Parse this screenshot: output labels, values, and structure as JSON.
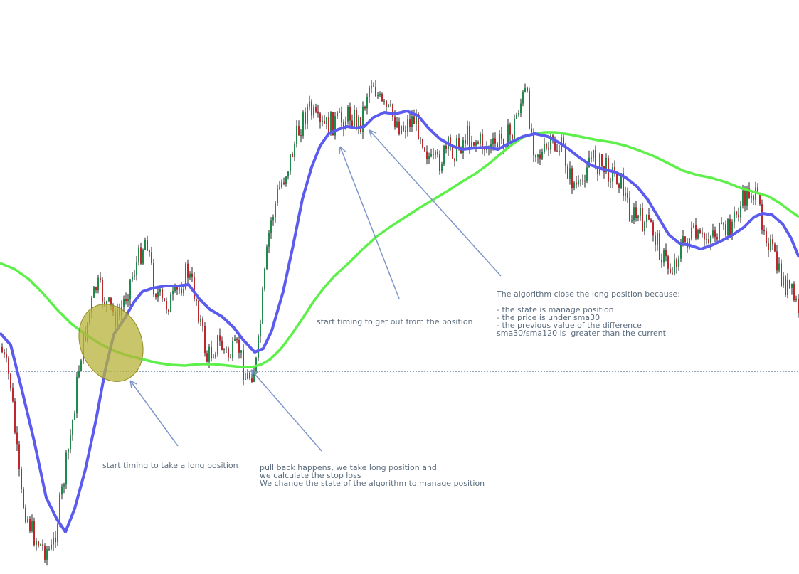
{
  "colors": {
    "background": "#ffffff",
    "up_candle": "#1f8a4c",
    "down_candle": "#c0272d",
    "wick": "#222222",
    "sma30": "#5b5bef",
    "sma120": "#5ef04a",
    "level_line": "#1f4e79",
    "arrow": "#7e96c8",
    "highlight_fill": "#b5b23a",
    "highlight_stroke": "#8f8c20",
    "annotation_text": "#5a6b7d"
  },
  "annotations": {
    "enter_timing": "start timing to take a long position",
    "pullback": "pull back happens, we take long position and\nwe calculate the stop loss\nWe change the state of the algorithm to manage position",
    "exit_timing": "start timing to get out from the position",
    "close_reason": "The algorithm close the long position because:\n\n- the state is manage position\n- the price is under sma30\n- the previous value of the difference\nsma30/sma120 is  greater than the current"
  },
  "chart_data": {
    "type": "candlestick",
    "title": "",
    "xlabel": "",
    "ylabel": "",
    "grid": false,
    "ylim": [
      0,
      807
    ],
    "price_path": [
      [
        0,
        488
      ],
      [
        14,
        540
      ],
      [
        28,
        695
      ],
      [
        45,
        750
      ],
      [
        58,
        770
      ],
      [
        72,
        775
      ],
      [
        85,
        700
      ],
      [
        100,
        600
      ],
      [
        112,
        500
      ],
      [
        125,
        440
      ],
      [
        135,
        400
      ],
      [
        150,
        430
      ],
      [
        165,
        450
      ],
      [
        180,
        400
      ],
      [
        195,
        360
      ],
      [
        205,
        330
      ],
      [
        215,
        400
      ],
      [
        228,
        430
      ],
      [
        245,
        420
      ],
      [
        262,
        380
      ],
      [
        275,
        420
      ],
      [
        290,
        505
      ],
      [
        305,
        480
      ],
      [
        320,
        500
      ],
      [
        335,
        490
      ],
      [
        345,
        535
      ],
      [
        360,
        510
      ],
      [
        368,
        420
      ],
      [
        378,
        320
      ],
      [
        390,
        270
      ],
      [
        405,
        230
      ],
      [
        420,
        180
      ],
      [
        432,
        150
      ],
      [
        448,
        180
      ],
      [
        462,
        175
      ],
      [
        478,
        170
      ],
      [
        492,
        160
      ],
      [
        505,
        175
      ],
      [
        515,
        130
      ],
      [
        522,
        110
      ],
      [
        535,
        150
      ],
      [
        548,
        160
      ],
      [
        565,
        180
      ],
      [
        580,
        165
      ],
      [
        592,
        190
      ],
      [
        605,
        230
      ],
      [
        615,
        230
      ],
      [
        628,
        210
      ],
      [
        640,
        210
      ],
      [
        655,
        190
      ],
      [
        672,
        200
      ],
      [
        690,
        210
      ],
      [
        705,
        195
      ],
      [
        718,
        190
      ],
      [
        728,
        150
      ],
      [
        738,
        130
      ],
      [
        748,
        200
      ],
      [
        760,
        220
      ],
      [
        775,
        205
      ],
      [
        790,
        210
      ],
      [
        800,
        250
      ],
      [
        815,
        270
      ],
      [
        825,
        220
      ],
      [
        840,
        230
      ],
      [
        855,
        240
      ],
      [
        870,
        250
      ],
      [
        885,
        300
      ],
      [
        900,
        310
      ],
      [
        915,
        320
      ],
      [
        930,
        360
      ],
      [
        942,
        380
      ],
      [
        955,
        350
      ],
      [
        970,
        330
      ],
      [
        985,
        340
      ],
      [
        1000,
        325
      ],
      [
        1015,
        330
      ],
      [
        1030,
        310
      ],
      [
        1045,
        280
      ],
      [
        1055,
        265
      ],
      [
        1065,
        290
      ],
      [
        1080,
        340
      ],
      [
        1095,
        390
      ],
      [
        1110,
        410
      ],
      [
        1123,
        440
      ]
    ],
    "series": [
      {
        "name": "sma30",
        "values": [
          [
            0,
            468
          ],
          [
            15,
            485
          ],
          [
            30,
            545
          ],
          [
            48,
            620
          ],
          [
            65,
            700
          ],
          [
            80,
            730
          ],
          [
            92,
            748
          ],
          [
            105,
            715
          ],
          [
            120,
            660
          ],
          [
            135,
            590
          ],
          [
            148,
            520
          ],
          [
            160,
            470
          ],
          [
            175,
            448
          ],
          [
            188,
            425
          ],
          [
            200,
            410
          ],
          [
            215,
            405
          ],
          [
            232,
            402
          ],
          [
            250,
            402
          ],
          [
            265,
            400
          ],
          [
            280,
            420
          ],
          [
            295,
            435
          ],
          [
            312,
            445
          ],
          [
            328,
            460
          ],
          [
            342,
            478
          ],
          [
            358,
            495
          ],
          [
            370,
            490
          ],
          [
            382,
            465
          ],
          [
            398,
            410
          ],
          [
            412,
            345
          ],
          [
            425,
            280
          ],
          [
            438,
            235
          ],
          [
            450,
            205
          ],
          [
            462,
            188
          ],
          [
            475,
            182
          ],
          [
            488,
            178
          ],
          [
            500,
            180
          ],
          [
            512,
            178
          ],
          [
            525,
            165
          ],
          [
            540,
            158
          ],
          [
            555,
            160
          ],
          [
            572,
            156
          ],
          [
            588,
            163
          ],
          [
            602,
            180
          ],
          [
            618,
            195
          ],
          [
            635,
            205
          ],
          [
            650,
            210
          ],
          [
            668,
            208
          ],
          [
            685,
            207
          ],
          [
            700,
            210
          ],
          [
            718,
            200
          ],
          [
            735,
            192
          ],
          [
            752,
            188
          ],
          [
            770,
            192
          ],
          [
            785,
            200
          ],
          [
            800,
            210
          ],
          [
            815,
            222
          ],
          [
            830,
            232
          ],
          [
            848,
            238
          ],
          [
            865,
            242
          ],
          [
            880,
            250
          ],
          [
            895,
            262
          ],
          [
            910,
            280
          ],
          [
            925,
            305
          ],
          [
            940,
            330
          ],
          [
            955,
            342
          ],
          [
            970,
            345
          ],
          [
            985,
            350
          ],
          [
            1000,
            345
          ],
          [
            1015,
            338
          ],
          [
            1030,
            330
          ],
          [
            1045,
            320
          ],
          [
            1060,
            305
          ],
          [
            1072,
            300
          ],
          [
            1085,
            302
          ],
          [
            1100,
            315
          ],
          [
            1112,
            335
          ],
          [
            1123,
            362
          ]
        ]
      },
      {
        "name": "sma120",
        "values": [
          [
            0,
            370
          ],
          [
            20,
            378
          ],
          [
            40,
            392
          ],
          [
            60,
            412
          ],
          [
            80,
            435
          ],
          [
            100,
            455
          ],
          [
            120,
            470
          ],
          [
            140,
            483
          ],
          [
            160,
            493
          ],
          [
            180,
            500
          ],
          [
            200,
            505
          ],
          [
            220,
            510
          ],
          [
            240,
            513
          ],
          [
            260,
            514
          ],
          [
            280,
            512
          ],
          [
            300,
            512
          ],
          [
            320,
            514
          ],
          [
            340,
            516
          ],
          [
            355,
            516
          ],
          [
            368,
            512
          ],
          [
            380,
            505
          ],
          [
            395,
            490
          ],
          [
            410,
            470
          ],
          [
            425,
            448
          ],
          [
            440,
            425
          ],
          [
            455,
            405
          ],
          [
            470,
            388
          ],
          [
            490,
            370
          ],
          [
            510,
            350
          ],
          [
            530,
            332
          ],
          [
            550,
            318
          ],
          [
            570,
            305
          ],
          [
            590,
            292
          ],
          [
            610,
            280
          ],
          [
            630,
            268
          ],
          [
            650,
            255
          ],
          [
            670,
            243
          ],
          [
            690,
            228
          ],
          [
            705,
            215
          ],
          [
            720,
            203
          ],
          [
            735,
            193
          ],
          [
            750,
            188
          ],
          [
            765,
            186
          ],
          [
            780,
            186
          ],
          [
            800,
            189
          ],
          [
            820,
            193
          ],
          [
            840,
            197
          ],
          [
            860,
            200
          ],
          [
            880,
            205
          ],
          [
            900,
            212
          ],
          [
            920,
            220
          ],
          [
            940,
            230
          ],
          [
            960,
            240
          ],
          [
            980,
            246
          ],
          [
            1000,
            250
          ],
          [
            1020,
            256
          ],
          [
            1040,
            264
          ],
          [
            1060,
            270
          ],
          [
            1080,
            276
          ],
          [
            1095,
            285
          ],
          [
            1110,
            296
          ],
          [
            1123,
            305
          ]
        ]
      }
    ],
    "horizontal_level": 522
  }
}
